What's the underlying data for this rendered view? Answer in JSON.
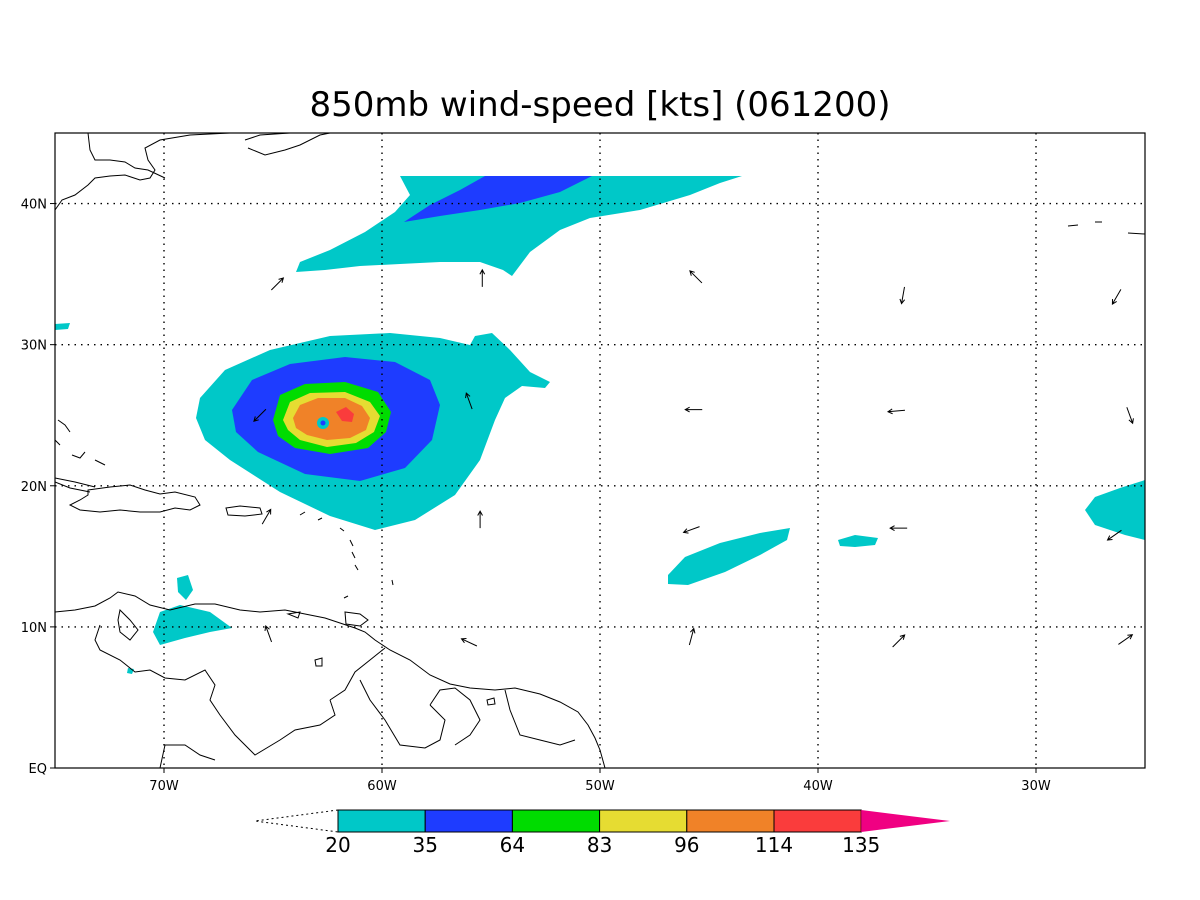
{
  "title": "850mb wind-speed [kts] (061200)",
  "chart_data": {
    "type": "heatmap",
    "title": "850mb wind-speed [kts] (061200)",
    "xlim": [
      -75,
      -25
    ],
    "ylim": [
      0,
      45
    ],
    "x_ticks": [
      {
        "value": -70,
        "label": "70W"
      },
      {
        "value": -60,
        "label": "60W"
      },
      {
        "value": -50,
        "label": "50W"
      },
      {
        "value": -40,
        "label": "40W"
      },
      {
        "value": -30,
        "label": "30W"
      }
    ],
    "y_ticks": [
      {
        "value": 0,
        "label": "EQ"
      },
      {
        "value": 10,
        "label": "10N"
      },
      {
        "value": 20,
        "label": "20N"
      },
      {
        "value": 30,
        "label": "30N"
      },
      {
        "value": 40,
        "label": "40N"
      }
    ],
    "grid": true,
    "colorbar": {
      "levels": [
        "20",
        "35",
        "64",
        "83",
        "96",
        "114",
        "135"
      ],
      "colors": [
        "#00c8c8",
        "#1e3cff",
        "#00dc00",
        "#e6dc32",
        "#f08228",
        "#fa3c3c",
        "#f00082"
      ],
      "placement": "bottom"
    },
    "features": [
      {
        "name": "hurricane-core",
        "center_lon": -62.7,
        "center_lat": 24.5,
        "max_level": "114"
      },
      {
        "name": "jet-streak",
        "lon_range": [
          -63.5,
          -43.5
        ],
        "lat_range": [
          35,
          42
        ],
        "max_level": "35"
      }
    ],
    "wind_vectors": [
      {
        "lon": -64.8,
        "lat": 34.3,
        "dir_deg": 45
      },
      {
        "lon": -55.4,
        "lat": 34.7,
        "dir_deg": 0
      },
      {
        "lon": -45.6,
        "lat": 34.8,
        "dir_deg": 315
      },
      {
        "lon": -36.1,
        "lat": 33.5,
        "dir_deg": 190
      },
      {
        "lon": -26.3,
        "lat": 33.4,
        "dir_deg": 210
      },
      {
        "lon": -65.6,
        "lat": 25.0,
        "dir_deg": 225
      },
      {
        "lon": -56.0,
        "lat": 26.0,
        "dir_deg": 340
      },
      {
        "lon": -45.7,
        "lat": 25.4,
        "dir_deg": 270
      },
      {
        "lon": -36.4,
        "lat": 25.3,
        "dir_deg": 265
      },
      {
        "lon": -25.7,
        "lat": 25.0,
        "dir_deg": 160
      },
      {
        "lon": -65.3,
        "lat": 17.8,
        "dir_deg": 30
      },
      {
        "lon": -55.5,
        "lat": 17.6,
        "dir_deg": 0
      },
      {
        "lon": -45.8,
        "lat": 16.9,
        "dir_deg": 250
      },
      {
        "lon": -36.3,
        "lat": 17.0,
        "dir_deg": 270
      },
      {
        "lon": -26.4,
        "lat": 16.5,
        "dir_deg": 235
      },
      {
        "lon": -65.2,
        "lat": 9.5,
        "dir_deg": 340
      },
      {
        "lon": -56.0,
        "lat": 8.9,
        "dir_deg": 295
      },
      {
        "lon": -45.8,
        "lat": 9.3,
        "dir_deg": 15
      },
      {
        "lon": -36.3,
        "lat": 9.0,
        "dir_deg": 45
      },
      {
        "lon": -25.9,
        "lat": 9.1,
        "dir_deg": 55
      }
    ]
  }
}
